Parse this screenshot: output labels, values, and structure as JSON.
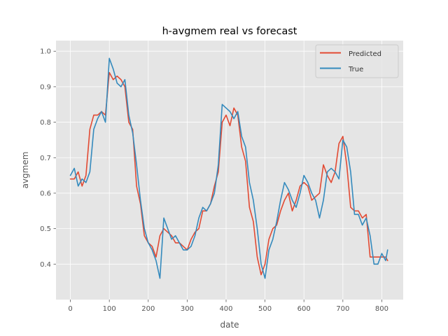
{
  "chart_data": {
    "type": "line",
    "title": "h-avgmem real vs forecast",
    "xlabel": "date",
    "ylabel": "avgmem",
    "xlim": [
      -37,
      855
    ],
    "ylim": [
      0.3,
      1.03
    ],
    "xticks": [
      0,
      100,
      200,
      300,
      400,
      500,
      600,
      700,
      800
    ],
    "yticks": [
      0.4,
      0.5,
      0.6,
      0.7,
      0.8,
      0.9,
      1.0
    ],
    "ytick_labels": [
      "0.4",
      "0.5",
      "0.6",
      "0.7",
      "0.8",
      "0.9",
      "1.0"
    ],
    "grid": true,
    "legend_position": "top-right",
    "colors": {
      "background": "#e5e5e5",
      "grid": "#ffffff",
      "predicted": "#e24a33",
      "true": "#348abd"
    },
    "series": [
      {
        "name": "Predicted",
        "x": [
          0,
          10,
          20,
          30,
          40,
          50,
          60,
          70,
          80,
          90,
          100,
          110,
          120,
          130,
          140,
          150,
          160,
          170,
          180,
          190,
          200,
          210,
          220,
          230,
          240,
          250,
          260,
          270,
          280,
          290,
          300,
          310,
          320,
          330,
          340,
          350,
          360,
          370,
          380,
          390,
          400,
          410,
          420,
          430,
          440,
          450,
          460,
          470,
          480,
          490,
          500,
          510,
          520,
          530,
          540,
          550,
          560,
          570,
          580,
          590,
          600,
          610,
          620,
          630,
          640,
          650,
          660,
          670,
          680,
          690,
          700,
          710,
          720,
          730,
          740,
          750,
          760,
          770,
          780,
          790,
          800,
          810,
          815
        ],
        "values": [
          0.64,
          0.64,
          0.66,
          0.62,
          0.65,
          0.78,
          0.82,
          0.82,
          0.83,
          0.82,
          0.94,
          0.92,
          0.93,
          0.92,
          0.9,
          0.8,
          0.78,
          0.62,
          0.57,
          0.48,
          0.46,
          0.45,
          0.42,
          0.48,
          0.5,
          0.49,
          0.48,
          0.46,
          0.46,
          0.45,
          0.44,
          0.47,
          0.49,
          0.5,
          0.55,
          0.55,
          0.57,
          0.62,
          0.66,
          0.8,
          0.82,
          0.79,
          0.84,
          0.82,
          0.73,
          0.69,
          0.56,
          0.52,
          0.42,
          0.37,
          0.4,
          0.47,
          0.5,
          0.51,
          0.55,
          0.58,
          0.6,
          0.55,
          0.58,
          0.62,
          0.63,
          0.62,
          0.58,
          0.59,
          0.6,
          0.68,
          0.65,
          0.63,
          0.66,
          0.74,
          0.76,
          0.68,
          0.56,
          0.55,
          0.55,
          0.53,
          0.54,
          0.42,
          0.42,
          0.42,
          0.42,
          0.42,
          0.41
        ]
      },
      {
        "name": "True",
        "x": [
          0,
          10,
          20,
          30,
          40,
          50,
          60,
          70,
          80,
          90,
          100,
          110,
          120,
          130,
          140,
          150,
          160,
          170,
          180,
          190,
          200,
          210,
          220,
          230,
          240,
          250,
          260,
          270,
          280,
          290,
          300,
          310,
          320,
          330,
          340,
          350,
          360,
          370,
          380,
          390,
          400,
          410,
          420,
          430,
          440,
          450,
          460,
          470,
          480,
          490,
          500,
          510,
          520,
          530,
          540,
          550,
          560,
          570,
          580,
          590,
          600,
          610,
          620,
          630,
          640,
          650,
          660,
          670,
          680,
          690,
          700,
          710,
          720,
          730,
          740,
          750,
          760,
          770,
          780,
          790,
          800,
          810,
          815
        ],
        "values": [
          0.65,
          0.67,
          0.62,
          0.64,
          0.63,
          0.66,
          0.78,
          0.81,
          0.83,
          0.8,
          0.98,
          0.95,
          0.91,
          0.9,
          0.92,
          0.82,
          0.77,
          0.68,
          0.58,
          0.5,
          0.46,
          0.44,
          0.41,
          0.36,
          0.53,
          0.5,
          0.47,
          0.48,
          0.46,
          0.44,
          0.44,
          0.45,
          0.48,
          0.53,
          0.56,
          0.55,
          0.57,
          0.6,
          0.68,
          0.85,
          0.84,
          0.83,
          0.81,
          0.83,
          0.76,
          0.73,
          0.63,
          0.58,
          0.5,
          0.4,
          0.36,
          0.44,
          0.47,
          0.52,
          0.58,
          0.63,
          0.61,
          0.58,
          0.56,
          0.6,
          0.65,
          0.63,
          0.6,
          0.58,
          0.53,
          0.58,
          0.66,
          0.67,
          0.66,
          0.64,
          0.75,
          0.73,
          0.66,
          0.54,
          0.54,
          0.51,
          0.53,
          0.48,
          0.4,
          0.4,
          0.43,
          0.41,
          0.44
        ]
      }
    ]
  }
}
